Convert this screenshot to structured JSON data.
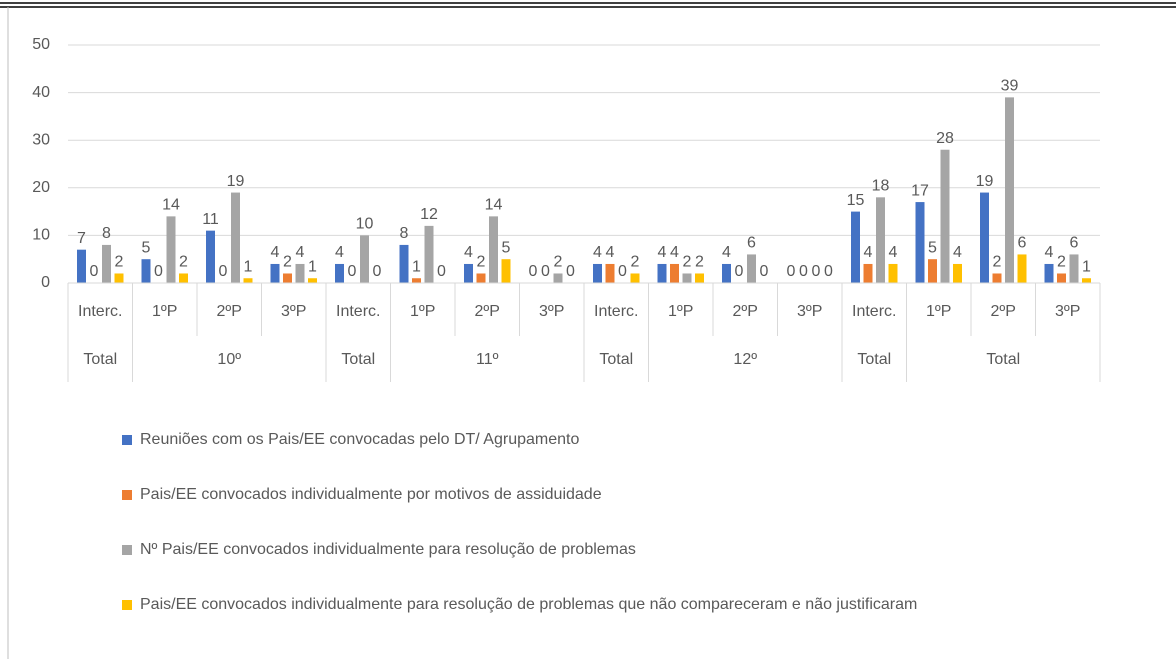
{
  "chart_data": {
    "type": "bar",
    "groups": [
      {
        "name": "Total",
        "categories": [
          "Interc."
        ]
      },
      {
        "name": "10º",
        "categories": [
          "1ºP",
          "2ºP",
          "3ºP"
        ]
      },
      {
        "name": "Total",
        "categories": [
          "Interc."
        ]
      },
      {
        "name": "11º",
        "categories": [
          "1ºP",
          "2ºP",
          "3ºP"
        ]
      },
      {
        "name": "Total",
        "categories": [
          "Interc."
        ]
      },
      {
        "name": "12º",
        "categories": [
          "1ºP",
          "2ºP",
          "3ºP"
        ]
      },
      {
        "name": "Total",
        "categories": [
          "Interc."
        ]
      },
      {
        "name": "Total",
        "categories": [
          "1ºP",
          "2ºP",
          "3ºP"
        ]
      }
    ],
    "series": [
      {
        "name": "Reuniões com os Pais/EE convocadas pelo DT/ Agrupamento",
        "color": "#4472c4",
        "values": [
          7,
          5,
          11,
          4,
          4,
          8,
          4,
          0,
          4,
          4,
          4,
          0,
          15,
          17,
          19,
          4
        ]
      },
      {
        "name": "Pais/EE convocados individualmente por motivos de assiduidade",
        "color": "#ed7d31",
        "values": [
          0,
          0,
          0,
          2,
          0,
          1,
          2,
          0,
          4,
          4,
          0,
          0,
          4,
          5,
          2,
          2
        ]
      },
      {
        "name": "Nº Pais/EE convocados individualmente para resolução de problemas",
        "color": "#a5a5a5",
        "values": [
          8,
          14,
          19,
          4,
          10,
          12,
          14,
          2,
          0,
          2,
          6,
          0,
          18,
          28,
          39,
          6
        ]
      },
      {
        "name": "Pais/EE convocados individualmente para resolução de problemas que não compareceram e não justificaram",
        "color": "#ffc000",
        "values": [
          2,
          2,
          1,
          1,
          0,
          0,
          5,
          0,
          2,
          2,
          0,
          0,
          4,
          4,
          6,
          1
        ]
      }
    ],
    "ylim": [
      0,
      50
    ],
    "yticks": [
      0,
      10,
      20,
      30,
      40,
      50
    ],
    "grid": true
  }
}
